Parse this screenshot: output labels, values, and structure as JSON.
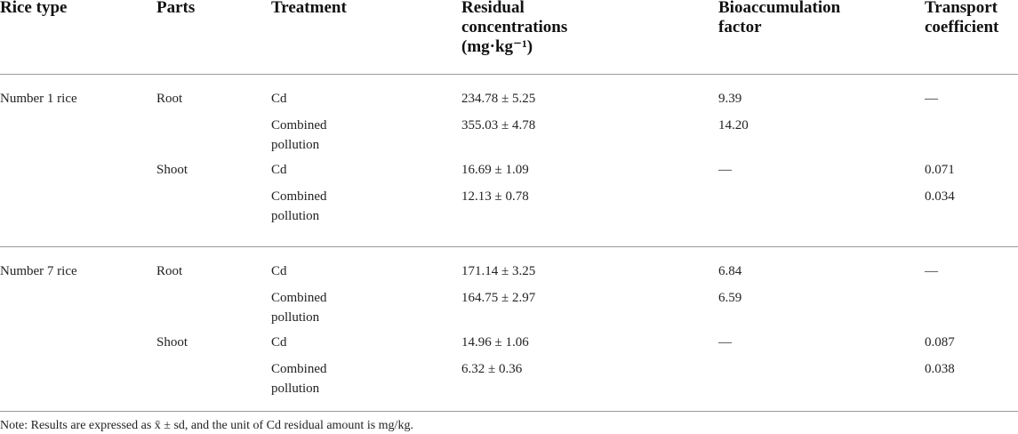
{
  "table": {
    "header": [
      "Rice type",
      "Parts",
      "Treatment",
      "Residual concentrations (mg·kg⁻¹)",
      "Bioaccumulation factor",
      "Transport coefficient"
    ],
    "rows": [
      [
        "Number 1 rice",
        "Root",
        "Cd",
        "234.78 ± 5.25",
        "9.39",
        "—"
      ],
      [
        null,
        null,
        "Combined pollution",
        "355.03 ± 4.78",
        "14.20",
        null
      ],
      [
        null,
        "Shoot",
        "Cd",
        "16.69 ± 1.09",
        "—",
        "0.071"
      ],
      [
        null,
        null,
        "Combined pollution",
        "12.13 ± 0.78",
        null,
        "0.034"
      ],
      [
        "Number 7 rice",
        "Root",
        "Cd",
        "171.14 ± 3.25",
        "6.84",
        "—"
      ],
      [
        null,
        null,
        "Combined pollution",
        "164.75 ± 2.97",
        "6.59",
        null
      ],
      [
        null,
        "Shoot",
        "Cd",
        "14.96 ± 1.06",
        "—",
        "0.087"
      ],
      [
        null,
        null,
        "Combined pollution",
        "6.32 ± 0.36",
        null,
        "0.038"
      ]
    ],
    "note": "Note: Results are expressed as x̄ ± sd, and the unit of Cd residual amount is mg/kg."
  }
}
